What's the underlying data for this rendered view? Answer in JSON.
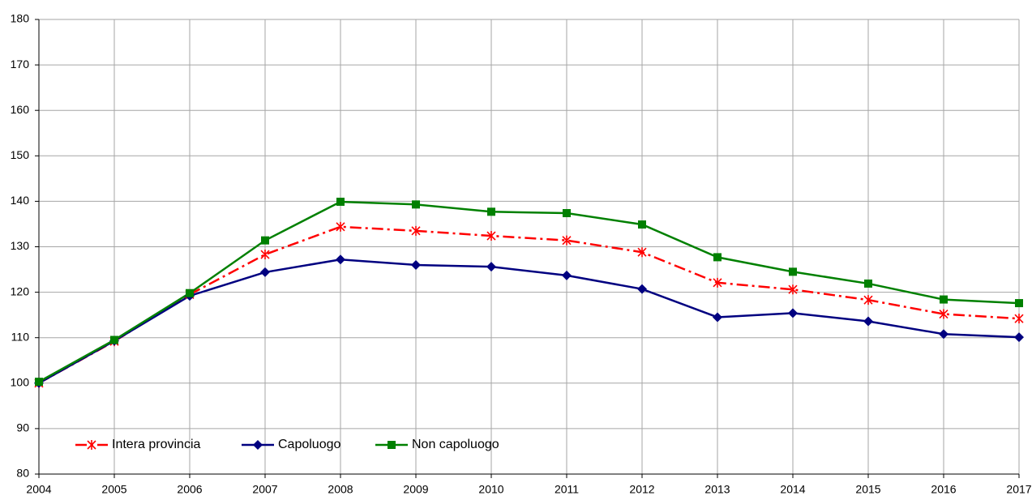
{
  "chart_data": {
    "type": "line",
    "x": [
      2004,
      2005,
      2006,
      2007,
      2008,
      2009,
      2010,
      2011,
      2012,
      2013,
      2014,
      2015,
      2016,
      2017
    ],
    "series": [
      {
        "name": "Intera provincia",
        "color": "#ff0000",
        "marker": "asterisk",
        "dash": "dashdot",
        "values": [
          100,
          109.2,
          119.5,
          128.3,
          134.4,
          133.5,
          132.4,
          131.4,
          128.8,
          122.1,
          120.6,
          118.3,
          115.2,
          114.2
        ]
      },
      {
        "name": "Capoluogo",
        "color": "#000080",
        "marker": "diamond",
        "dash": "solid",
        "values": [
          100,
          109.3,
          119.2,
          124.4,
          127.2,
          126,
          125.6,
          123.7,
          120.7,
          114.5,
          115.4,
          113.6,
          110.8,
          110.1
        ]
      },
      {
        "name": "Non capoluogo",
        "color": "#008000",
        "marker": "square",
        "dash": "solid",
        "values": [
          100.3,
          109.5,
          119.8,
          131.4,
          139.9,
          139.3,
          137.7,
          137.4,
          134.9,
          127.7,
          124.5,
          121.9,
          118.4,
          117.6
        ]
      }
    ],
    "xlim": [
      2004,
      2017
    ],
    "xticks": [
      2004,
      2005,
      2006,
      2007,
      2008,
      2009,
      2010,
      2011,
      2012,
      2013,
      2014,
      2015,
      2016,
      2017
    ],
    "ylim": [
      80,
      180
    ],
    "yticks": [
      80,
      90,
      100,
      110,
      120,
      130,
      140,
      150,
      160,
      170,
      180
    ],
    "grid": true,
    "legend": "lower-left"
  }
}
